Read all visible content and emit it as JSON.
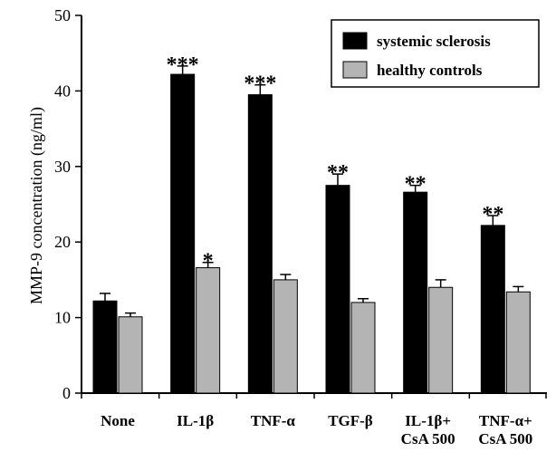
{
  "chart_data": {
    "type": "bar",
    "title": "",
    "xlabel": "",
    "ylabel": "MMP-9 concentration (ng/ml)",
    "ylim": [
      0,
      50
    ],
    "yticks": [
      "0",
      "10",
      "20",
      "30",
      "40",
      "50"
    ],
    "categories": [
      [
        "None"
      ],
      [
        "IL-1β"
      ],
      [
        "TNF-α"
      ],
      [
        "TGF-β"
      ],
      [
        "IL-1β+",
        "CsA 500"
      ],
      [
        "TNF-α+",
        "CsA 500"
      ]
    ],
    "series": [
      {
        "name": "systemic sclerosis",
        "color": "#000000",
        "values": [
          12.2,
          42.2,
          39.5,
          27.5,
          26.6,
          22.2
        ],
        "errors": [
          1.0,
          1.1,
          1.3,
          1.5,
          0.9,
          1.3
        ],
        "significance": [
          "",
          "***",
          "***",
          "**",
          "**",
          "**"
        ]
      },
      {
        "name": "healthy controls",
        "color": "#b4b4b4",
        "values": [
          10.1,
          16.6,
          15.0,
          12.0,
          14.0,
          13.4
        ],
        "errors": [
          0.5,
          0.7,
          0.7,
          0.5,
          1.0,
          0.7
        ],
        "significance": [
          "",
          "*",
          "",
          "",
          "",
          ""
        ]
      }
    ],
    "legend_position": "top-right",
    "grid": false
  }
}
